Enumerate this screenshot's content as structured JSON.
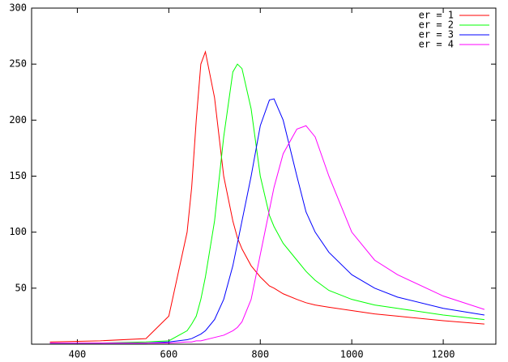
{
  "chart_data": {
    "type": "line",
    "x": [
      340,
      450,
      550,
      600,
      640,
      650,
      660,
      670,
      680,
      700,
      720,
      740,
      750,
      760,
      780,
      800,
      820,
      830,
      850,
      880,
      900,
      920,
      950,
      1000,
      1050,
      1100,
      1200,
      1290
    ],
    "series": [
      {
        "name": "er = 1",
        "color": "#ff0000",
        "values": [
          2,
          3,
          5,
          25,
          100,
          140,
          200,
          250,
          261,
          220,
          150,
          110,
          95,
          85,
          70,
          60,
          52,
          50,
          45,
          40,
          37,
          35,
          33,
          30,
          27,
          25,
          21,
          18
        ]
      },
      {
        "name": "er = 2",
        "color": "#00ff00",
        "values": [
          1,
          1,
          2,
          3,
          12,
          18,
          25,
          40,
          60,
          110,
          185,
          243,
          250,
          246,
          210,
          150,
          115,
          105,
          90,
          75,
          65,
          57,
          48,
          40,
          35,
          32,
          26,
          22
        ]
      },
      {
        "name": "er = 3",
        "color": "#0000ff",
        "values": [
          1,
          1,
          1,
          2,
          4,
          5,
          7,
          9,
          12,
          22,
          40,
          70,
          90,
          110,
          150,
          195,
          218,
          219,
          200,
          150,
          118,
          100,
          82,
          62,
          50,
          42,
          32,
          26
        ]
      },
      {
        "name": "er = 4",
        "color": "#ff00ff",
        "values": [
          1,
          1,
          1,
          1,
          2,
          2,
          3,
          3,
          4,
          6,
          8,
          12,
          15,
          20,
          40,
          80,
          120,
          140,
          170,
          192,
          195,
          185,
          150,
          100,
          75,
          62,
          43,
          31
        ]
      }
    ],
    "xlim": [
      300,
      1315
    ],
    "xticks": [
      400,
      600,
      800,
      1000,
      1200
    ],
    "ylim": [
      0,
      300
    ],
    "yticks": [
      50,
      100,
      150,
      200,
      250,
      300
    ],
    "legend": "top-right"
  }
}
